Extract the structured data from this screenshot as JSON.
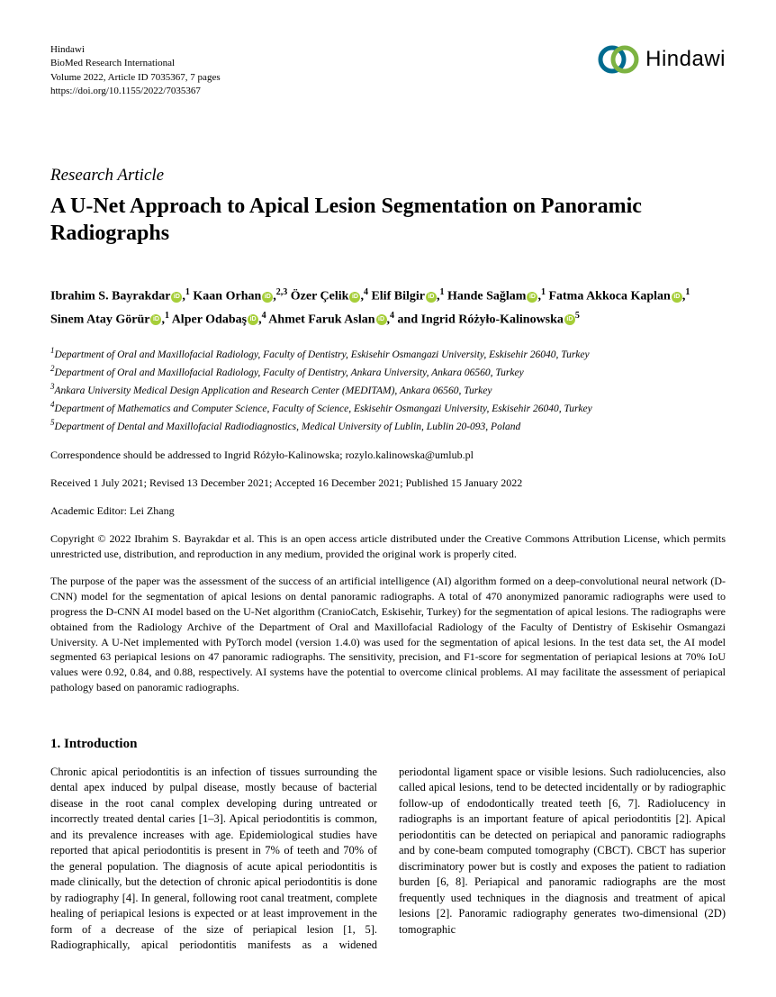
{
  "journal": {
    "publisher": "Hindawi",
    "name": "BioMed Research International",
    "volume_line": "Volume 2022, Article ID 7035367, 7 pages",
    "doi": "https://doi.org/10.1155/2022/7035367"
  },
  "logo": {
    "text": "Hindawi",
    "ring1_color": "#006b8f",
    "ring2_color": "#7db342"
  },
  "article_type": "Research Article",
  "title": "A U-Net Approach to Apical Lesion Segmentation on Panoramic Radiographs",
  "authors": [
    {
      "name": "Ibrahim S. Bayrakdar",
      "aff": "1"
    },
    {
      "name": "Kaan Orhan",
      "aff": "2,3"
    },
    {
      "name": "Özer Çelik",
      "aff": "4"
    },
    {
      "name": "Elif Bilgir",
      "aff": "1"
    },
    {
      "name": "Hande Sağlam",
      "aff": "1"
    },
    {
      "name": "Fatma Akkoca Kaplan",
      "aff": "1"
    },
    {
      "name": "Sinem Atay Görür",
      "aff": "1"
    },
    {
      "name": "Alper Odabaş",
      "aff": "4"
    },
    {
      "name": "Ahmet Faruk Aslan",
      "aff": "4"
    },
    {
      "name": "Ingrid Różyło-Kalinowska",
      "aff": "5"
    }
  ],
  "and_text": "and ",
  "affiliations": [
    "Department of Oral and Maxillofacial Radiology, Faculty of Dentistry, Eskisehir Osmangazi University, Eskisehir 26040, Turkey",
    "Department of Oral and Maxillofacial Radiology, Faculty of Dentistry, Ankara University, Ankara 06560, Turkey",
    "Ankara University Medical Design Application and Research Center (MEDITAM), Ankara 06560, Turkey",
    "Department of Mathematics and Computer Science, Faculty of Science, Eskisehir Osmangazi University, Eskisehir 26040, Turkey",
    "Department of Dental and Maxillofacial Radiodiagnostics, Medical University of Lublin, Lublin 20-093, Poland"
  ],
  "correspondence": "Correspondence should be addressed to Ingrid Różyło-Kalinowska; rozylo.kalinowska@umlub.pl",
  "dates": "Received 1 July 2021; Revised 13 December 2021; Accepted 16 December 2021; Published 15 January 2022",
  "editor": "Academic Editor: Lei Zhang",
  "copyright": "Copyright © 2022 Ibrahim S. Bayrakdar et al. This is an open access article distributed under the Creative Commons Attribution License, which permits unrestricted use, distribution, and reproduction in any medium, provided the original work is properly cited.",
  "abstract": "The purpose of the paper was the assessment of the success of an artificial intelligence (AI) algorithm formed on a deep-convolutional neural network (D-CNN) model for the segmentation of apical lesions on dental panoramic radiographs. A total of 470 anonymized panoramic radiographs were used to progress the D-CNN AI model based on the U-Net algorithm (CranioCatch, Eskisehir, Turkey) for the segmentation of apical lesions. The radiographs were obtained from the Radiology Archive of the Department of Oral and Maxillofacial Radiology of the Faculty of Dentistry of Eskisehir Osmangazi University. A U-Net implemented with PyTorch model (version 1.4.0) was used for the segmentation of apical lesions. In the test data set, the AI model segmented 63 periapical lesions on 47 panoramic radiographs. The sensitivity, precision, and F1-score for segmentation of periapical lesions at 70% IoU values were 0.92, 0.84, and 0.88, respectively. AI systems have the potential to overcome clinical problems. AI may facilitate the assessment of periapical pathology based on panoramic radiographs.",
  "section1": {
    "title": "1. Introduction",
    "body": "Chronic apical periodontitis is an infection of tissues surrounding the dental apex induced by pulpal disease, mostly because of bacterial disease in the root canal complex developing during untreated or incorrectly treated dental caries [1–3]. Apical periodontitis is common, and its prevalence increases with age. Epidemiological studies have reported that apical periodontitis is present in 7% of teeth and 70% of the general population. The diagnosis of acute apical periodontitis is made clinically, but the detection of chronic apical periodontitis is done by radiography [4]. In general, following root canal treatment, complete healing of periapical lesions is expected or at least improvement in the form of a decrease of the size of periapical lesion [1, 5]. Radiographically, apical periodontitis manifests as a widened periodontal ligament space or visible lesions. Such radiolucencies, also called apical lesions, tend to be detected incidentally or by radiographic follow-up of endodontically treated teeth [6, 7]. Radiolucency in radiographs is an important feature of apical periodontitis [2]. Apical periodontitis can be detected on periapical and panoramic radiographs and by cone-beam computed tomography (CBCT). CBCT has superior discriminatory power but is costly and exposes the patient to radiation burden [6, 8]. Periapical and panoramic radiographs are the most frequently used techniques in the diagnosis and treatment of apical lesions [2]. Panoramic radiography generates two-dimensional (2D) tomographic"
  }
}
